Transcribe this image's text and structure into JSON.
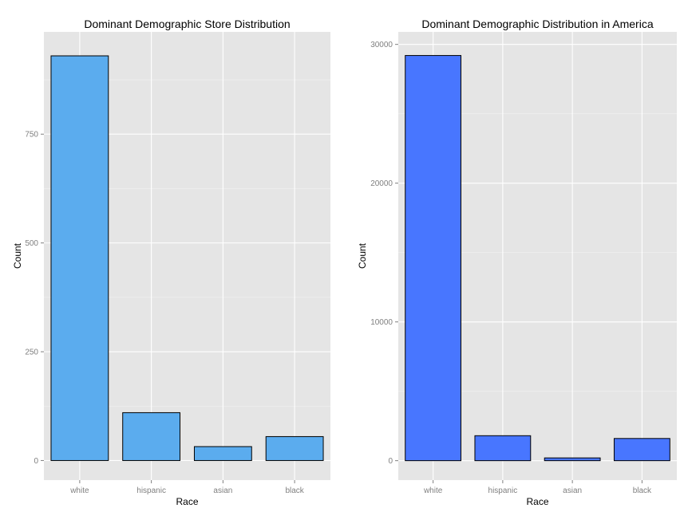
{
  "chart_data": [
    {
      "type": "bar",
      "title": "Dominant Demographic Store Distribution",
      "xlabel": "Race",
      "ylabel": "Count",
      "categories": [
        "white",
        "hispanic",
        "asian",
        "black"
      ],
      "values": [
        930,
        110,
        32,
        55
      ],
      "ylim": [
        -45,
        985
      ],
      "yticks": [
        0,
        250,
        500,
        750
      ],
      "ytick_labels": [
        "0",
        "250",
        "500",
        "750"
      ],
      "grid": true,
      "bar_color": "#5BACEE",
      "bar_border": "#000000",
      "panel_color": "#E5E5E5"
    },
    {
      "type": "bar",
      "title": "Dominant Demographic Distribution in America",
      "xlabel": "Race",
      "ylabel": "Count",
      "categories": [
        "white",
        "hispanic",
        "asian",
        "black"
      ],
      "values": [
        29200,
        1800,
        200,
        1600
      ],
      "ylim": [
        -1400,
        30900
      ],
      "yticks": [
        0,
        10000,
        20000,
        30000
      ],
      "ytick_labels": [
        "0",
        "10000",
        "20000",
        "30000"
      ],
      "grid": true,
      "bar_color": "#4876FF",
      "bar_border": "#000000",
      "panel_color": "#E5E5E5"
    }
  ]
}
